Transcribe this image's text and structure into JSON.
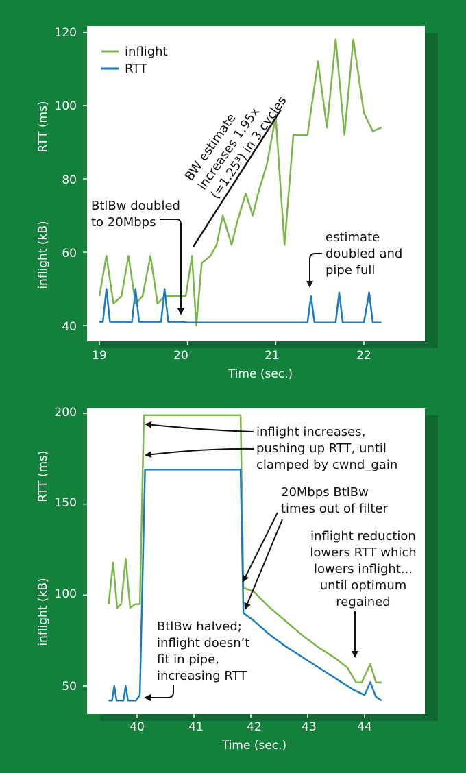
{
  "colors": {
    "background": "#13803c",
    "panel": "#ffffff",
    "inflight": "#7ab648",
    "rtt": "#1a7ac2",
    "axis_text": "#ffffff"
  },
  "chart_data": [
    {
      "type": "line",
      "xlabel": "Time (sec.)",
      "ylabel_rtt": "RTT (ms)",
      "ylabel_inflight": "inflight (kB)",
      "xlim": [
        19,
        22.2
      ],
      "ylim": [
        40,
        120
      ],
      "x_ticks": [
        "19",
        "20",
        "21",
        "22"
      ],
      "y_ticks": [
        "40",
        "60",
        "80",
        "100",
        "120"
      ],
      "legend": {
        "placement": "top-left",
        "entries": [
          "inflight",
          "RTT"
        ]
      },
      "series": [
        {
          "name": "inflight",
          "x": [
            19.0,
            19.08,
            19.16,
            19.25,
            19.33,
            19.41,
            19.49,
            19.58,
            19.66,
            19.74,
            19.82,
            19.9,
            19.98,
            20.05,
            20.1,
            20.16,
            20.26,
            20.33,
            20.4,
            20.5,
            20.56,
            20.66,
            20.74,
            20.8,
            20.9,
            21.0,
            21.1,
            21.2,
            21.36,
            21.48,
            21.58,
            21.68,
            21.78,
            21.88,
            22.0,
            22.1,
            22.2
          ],
          "y": [
            48,
            59,
            46,
            48,
            59,
            46,
            48,
            59,
            46,
            48,
            48,
            48,
            48,
            59,
            40,
            57,
            59,
            62,
            70,
            62,
            68,
            76,
            70,
            76,
            84,
            97,
            62,
            92,
            92,
            112,
            94,
            118,
            92,
            118,
            98,
            93,
            94
          ]
        },
        {
          "name": "RTT",
          "x": [
            19.0,
            19.04,
            19.08,
            19.12,
            19.37,
            19.41,
            19.45,
            19.7,
            19.74,
            19.78,
            19.95,
            20.0,
            21.3,
            21.36,
            21.4,
            21.44,
            21.68,
            21.72,
            21.76,
            22.0,
            22.06,
            22.1,
            22.2
          ],
          "y": [
            41,
            41,
            50,
            41,
            41,
            50,
            41,
            41,
            50,
            41,
            41,
            40.8,
            40.8,
            40.8,
            48,
            40.8,
            40.8,
            49,
            40.8,
            40.8,
            49,
            40.8,
            40.8
          ]
        }
      ],
      "annotations": [
        {
          "lines": [
            "BW estimate",
            "increases 1.95x",
            "(=1.25³) in 3 cycles"
          ]
        },
        {
          "lines": [
            "BtlBw doubled",
            "to 20Mbps"
          ]
        },
        {
          "lines": [
            "estimate",
            "doubled and",
            "pipe full"
          ]
        }
      ]
    },
    {
      "type": "line",
      "xlabel": "Time (sec.)",
      "ylabel_rtt": "RTT (ms)",
      "ylabel_inflight": "inflight (kB)",
      "xlim": [
        39.4,
        44.4
      ],
      "ylim": [
        40,
        200
      ],
      "x_ticks": [
        "40",
        "41",
        "42",
        "43",
        "44"
      ],
      "y_ticks": [
        "50",
        "100",
        "150",
        "200"
      ],
      "series": [
        {
          "name": "inflight",
          "x": [
            39.5,
            39.58,
            39.65,
            39.72,
            39.8,
            39.88,
            39.97,
            40.05,
            40.12,
            40.5,
            41.0,
            41.5,
            41.82,
            41.87,
            42.05,
            42.3,
            42.6,
            42.9,
            43.2,
            43.5,
            43.7,
            43.85,
            43.95,
            44.1,
            44.2,
            44.3
          ],
          "y": [
            95,
            118,
            93,
            95,
            120,
            93,
            95,
            95,
            199,
            199,
            199,
            199,
            199,
            104,
            102,
            94,
            86,
            78,
            71,
            65,
            60,
            52,
            52,
            62,
            52,
            52
          ]
        },
        {
          "name": "RTT",
          "x": [
            39.5,
            39.56,
            39.6,
            39.64,
            39.76,
            39.8,
            39.84,
            39.98,
            40.05,
            40.14,
            40.5,
            41.0,
            41.5,
            41.82,
            41.87,
            42.05,
            42.3,
            42.6,
            42.9,
            43.2,
            43.5,
            43.8,
            44.0,
            44.1,
            44.2,
            44.3
          ],
          "y": [
            42,
            42,
            50,
            42,
            42,
            50,
            42,
            42,
            45,
            169,
            169,
            169,
            169,
            169,
            90,
            86,
            79,
            72,
            66,
            60,
            54,
            48,
            45,
            52,
            44,
            42
          ]
        }
      ],
      "annotations": [
        {
          "lines": [
            "inflight increases,",
            "pushing up RTT, until",
            "clamped by cwnd_gain"
          ]
        },
        {
          "lines": [
            "20Mbps BtlBw",
            "times out of filter"
          ]
        },
        {
          "lines": [
            "inflight reduction",
            "lowers RTT which",
            "lowers inflight...",
            "until optimum",
            "regained"
          ]
        },
        {
          "lines": [
            "BtlBw halved;",
            "inflight doesn’t",
            "fit in pipe,",
            "increasing RTT"
          ]
        }
      ]
    }
  ]
}
